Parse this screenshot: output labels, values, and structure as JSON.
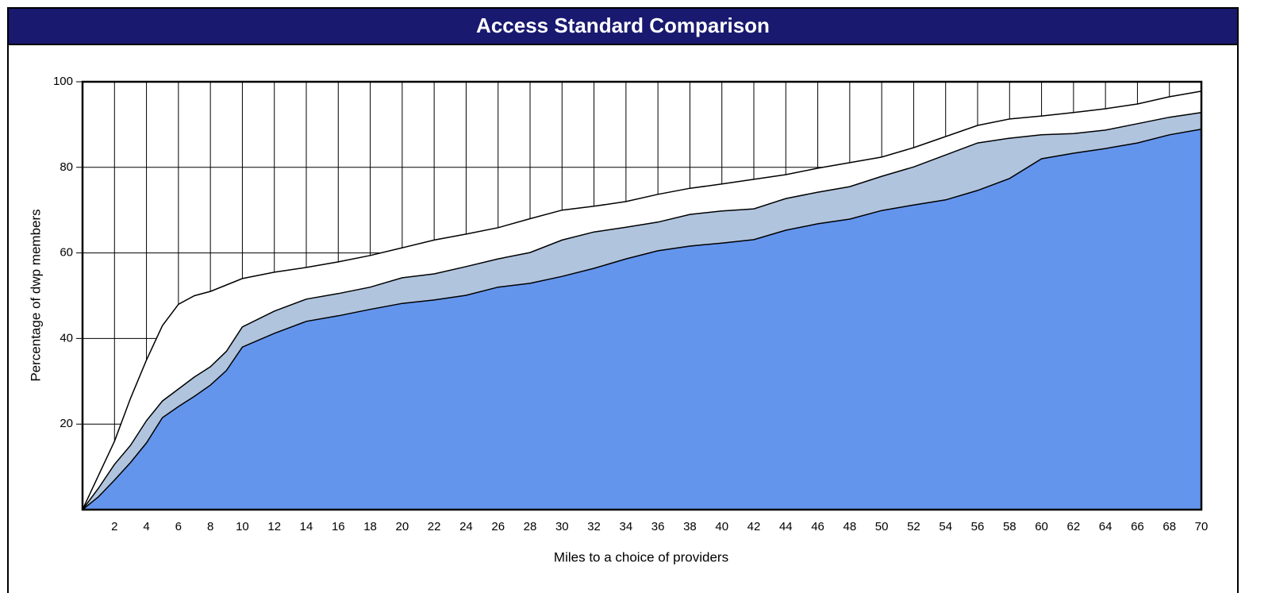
{
  "chart_data": {
    "type": "area",
    "title": "Access Standard Comparison",
    "xlabel": "Miles to a choice of providers",
    "ylabel": "Percentage of dwp members",
    "x": [
      0,
      1,
      2,
      3,
      4,
      5,
      6,
      7,
      8,
      9,
      10,
      12,
      14,
      16,
      18,
      20,
      22,
      24,
      26,
      28,
      30,
      32,
      34,
      36,
      38,
      40,
      42,
      44,
      46,
      48,
      50,
      52,
      54,
      56,
      58,
      60,
      62,
      64,
      66,
      68,
      70
    ],
    "series": [
      {
        "color": "#ffffff",
        "values": [
          0,
          8,
          16,
          26,
          35,
          43,
          48,
          50,
          51,
          52.5,
          54,
          55.5,
          56.6,
          57.9,
          59.4,
          61.2,
          63,
          64.4,
          65.9,
          68,
          70,
          70.9,
          72,
          73.7,
          75.1,
          76.1,
          77.2,
          78.3,
          79.8,
          81.1,
          82.4,
          84.6,
          87.2,
          89.8,
          91.3,
          92,
          92.8,
          93.7,
          94.8,
          96.5,
          97.8
        ]
      },
      {
        "color": "#b0c4de",
        "values": [
          0,
          5,
          10.6,
          15,
          20.8,
          25.4,
          28.2,
          31,
          33.4,
          37,
          42.7,
          46.4,
          49.2,
          50.5,
          52,
          54.2,
          55.1,
          56.8,
          58.6,
          60.1,
          63,
          64.9,
          66,
          67.2,
          69,
          69.8,
          70.3,
          72.7,
          74.2,
          75.5,
          77.9,
          80.1,
          82.9,
          85.7,
          86.8,
          87.6,
          87.9,
          88.7,
          90.2,
          91.7,
          92.8
        ]
      },
      {
        "color": "#6495ed",
        "values": [
          0,
          3,
          6.9,
          11,
          15.6,
          21.5,
          24.1,
          26.5,
          29.1,
          32.5,
          38,
          41.2,
          44,
          45.3,
          46.8,
          48.2,
          49,
          50.1,
          52,
          52.9,
          54.5,
          56.4,
          58.6,
          60.5,
          61.6,
          62.3,
          63.1,
          65.3,
          66.8,
          67.9,
          69.9,
          71.2,
          72.4,
          74.6,
          77.4,
          82,
          83.3,
          84.4,
          85.7,
          87.6,
          88.9
        ]
      }
    ],
    "xlim": [
      0,
      70
    ],
    "ylim": [
      0,
      100
    ],
    "xticks": [
      2,
      4,
      6,
      8,
      10,
      12,
      14,
      16,
      18,
      20,
      22,
      24,
      26,
      28,
      30,
      32,
      34,
      36,
      38,
      40,
      42,
      44,
      46,
      48,
      50,
      52,
      54,
      56,
      58,
      60,
      62,
      64,
      66,
      68,
      70
    ],
    "yticks": [
      20,
      40,
      60,
      80,
      100
    ],
    "grid": true
  }
}
